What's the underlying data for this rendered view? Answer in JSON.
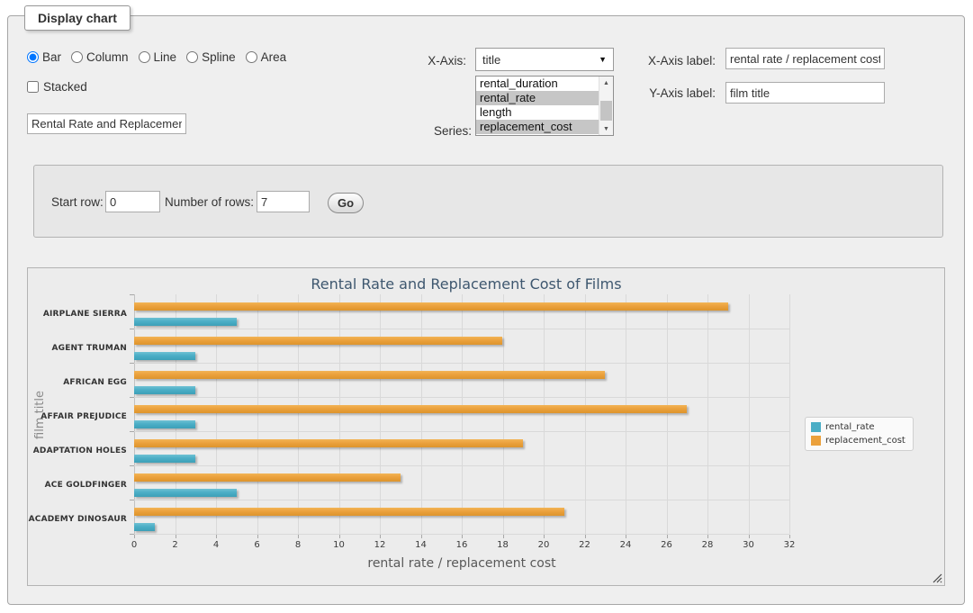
{
  "fieldset": {
    "legend": "Display chart"
  },
  "icons": {
    "select_arrow": "▼",
    "scroll_up": "▲",
    "scroll_down": "▼"
  },
  "controls": {
    "chart_types": [
      {
        "label": "Bar",
        "selected": true
      },
      {
        "label": "Column",
        "selected": false
      },
      {
        "label": "Line",
        "selected": false
      },
      {
        "label": "Spline",
        "selected": false
      },
      {
        "label": "Area",
        "selected": false
      }
    ],
    "stacked": {
      "label": "Stacked",
      "checked": false
    },
    "chart_title_input": {
      "value": "Rental Rate and Replacement Cost of Films"
    },
    "x_axis": {
      "label": "X-Axis:",
      "selected_value": "title"
    },
    "series_select": {
      "label": "Series:",
      "options": [
        {
          "label": "rental_duration",
          "selected": false
        },
        {
          "label": "rental_rate",
          "selected": true
        },
        {
          "label": "length",
          "selected": false
        },
        {
          "label": "replacement_cost",
          "selected": true
        }
      ]
    },
    "x_axis_label": {
      "label": "X-Axis label:",
      "value": "rental rate / replacement cost"
    },
    "y_axis_label": {
      "label": "Y-Axis label:",
      "value": "film title"
    }
  },
  "row_controls": {
    "start_row": {
      "label": "Start row:",
      "value": "0"
    },
    "num_rows": {
      "label": "Number of rows:",
      "value": "7"
    },
    "go_button": "Go"
  },
  "chart_data": {
    "type": "bar",
    "title": "Rental Rate and Replacement Cost of Films",
    "categories": [
      "AIRPLANE SIERRA",
      "AGENT TRUMAN",
      "AFRICAN EGG",
      "AFFAIR PREJUDICE",
      "ADAPTATION HOLES",
      "ACE GOLDFINGER",
      "ACADEMY DINOSAUR"
    ],
    "series": [
      {
        "name": "rental_rate",
        "color": "#4BAEC6",
        "values": [
          4.99,
          2.99,
          2.99,
          2.99,
          2.99,
          4.99,
          0.99
        ]
      },
      {
        "name": "replacement_cost",
        "color": "#EBA13C",
        "values": [
          28.99,
          17.99,
          22.99,
          26.99,
          18.99,
          12.99,
          20.99
        ]
      }
    ],
    "xlabel": "rental rate / replacement cost",
    "ylabel": "film title",
    "xlim": [
      0,
      32
    ],
    "x_ticks": [
      0,
      2,
      4,
      6,
      8,
      10,
      12,
      14,
      16,
      18,
      20,
      22,
      24,
      26,
      28,
      30,
      32
    ],
    "grid": true,
    "legend_position": "right"
  }
}
